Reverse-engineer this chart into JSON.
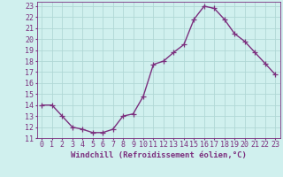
{
  "x": [
    0,
    1,
    2,
    3,
    4,
    5,
    6,
    7,
    8,
    9,
    10,
    11,
    12,
    13,
    14,
    15,
    16,
    17,
    18,
    19,
    20,
    21,
    22,
    23
  ],
  "y": [
    14.0,
    14.0,
    13.0,
    12.0,
    11.8,
    11.5,
    11.5,
    11.8,
    13.0,
    13.2,
    14.8,
    17.7,
    18.0,
    18.8,
    19.5,
    21.8,
    23.0,
    22.8,
    21.8,
    20.5,
    19.8,
    18.8,
    17.8,
    16.8
  ],
  "line_color": "#7b2f7e",
  "marker": "+",
  "marker_size": 4,
  "linewidth": 1.0,
  "background_color": "#d0f0ee",
  "grid_color": "#b0d8d5",
  "xlabel": "Windchill (Refroidissement éolien,°C)",
  "ylabel_ticks": [
    11,
    12,
    13,
    14,
    15,
    16,
    17,
    18,
    19,
    20,
    21,
    22,
    23
  ],
  "xlim": [
    -0.5,
    23.5
  ],
  "ylim": [
    11,
    23.4
  ],
  "xlabel_fontsize": 6.5,
  "tick_fontsize": 6,
  "xlabel_color": "#7b2f7e",
  "tick_color": "#7b2f7e"
}
